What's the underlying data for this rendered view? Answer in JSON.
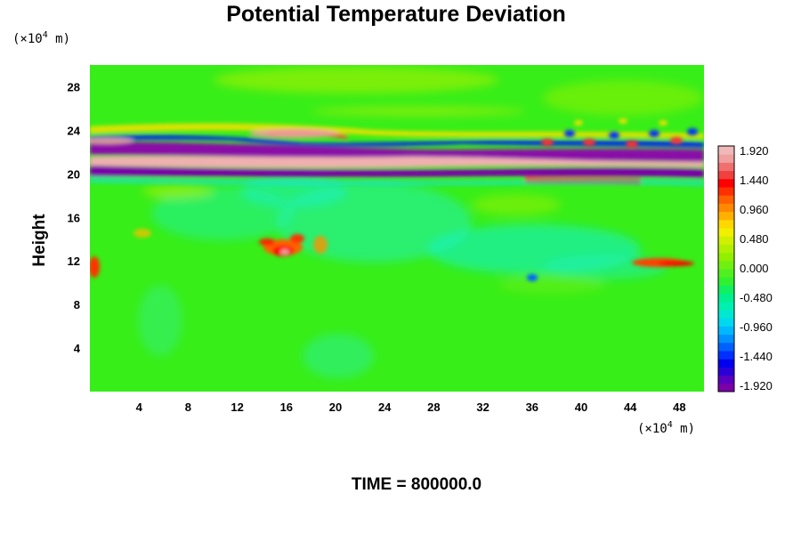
{
  "chart_data": {
    "type": "heatmap",
    "title": "Potential Temperature Deviation",
    "ylabel": "Height",
    "x_unit_label": [
      "(×10",
      "4",
      " m)"
    ],
    "y_unit_label": [
      "(×10",
      "4",
      " m)"
    ],
    "x_unit": "(×10⁴ m)",
    "y_unit": "(×10⁴ m)",
    "x_ticks": [
      4,
      8,
      12,
      16,
      20,
      24,
      28,
      32,
      36,
      40,
      44,
      48
    ],
    "y_ticks": [
      4,
      8,
      12,
      16,
      20,
      24,
      28
    ],
    "xlim": [
      0,
      50
    ],
    "ylim": [
      0,
      30
    ],
    "colorbar": {
      "labels": [
        "1.920",
        "1.440",
        "0.960",
        "0.480",
        "0.000",
        "-0.480",
        "-0.960",
        "-1.440",
        "-1.920"
      ],
      "min": -1.92,
      "max": 1.92,
      "colors": [
        "#7a00a8",
        "#5a00c0",
        "#2a00d8",
        "#0000f0",
        "#0030ff",
        "#0060ff",
        "#0090ff",
        "#00b8ff",
        "#00d8f0",
        "#00e8d0",
        "#00f0b0",
        "#00f090",
        "#10f060",
        "#30f030",
        "#50f020",
        "#70f010",
        "#90f000",
        "#b0f000",
        "#d0f000",
        "#f0f000",
        "#ffd800",
        "#ffb000",
        "#ff8800",
        "#ff6000",
        "#ff3000",
        "#ff0000",
        "#f04040",
        "#f07070",
        "#f0a0a0",
        "#f0b8b8"
      ]
    },
    "features": [
      {
        "description": "stratospheric band",
        "y_range": [
          20,
          23.5
        ],
        "value_range": [
          -1.92,
          1.92
        ]
      },
      {
        "description": "positive blob",
        "x": 16,
        "y": 13,
        "value": 1.9
      }
    ],
    "time_label": "TIME = 800000.0"
  }
}
